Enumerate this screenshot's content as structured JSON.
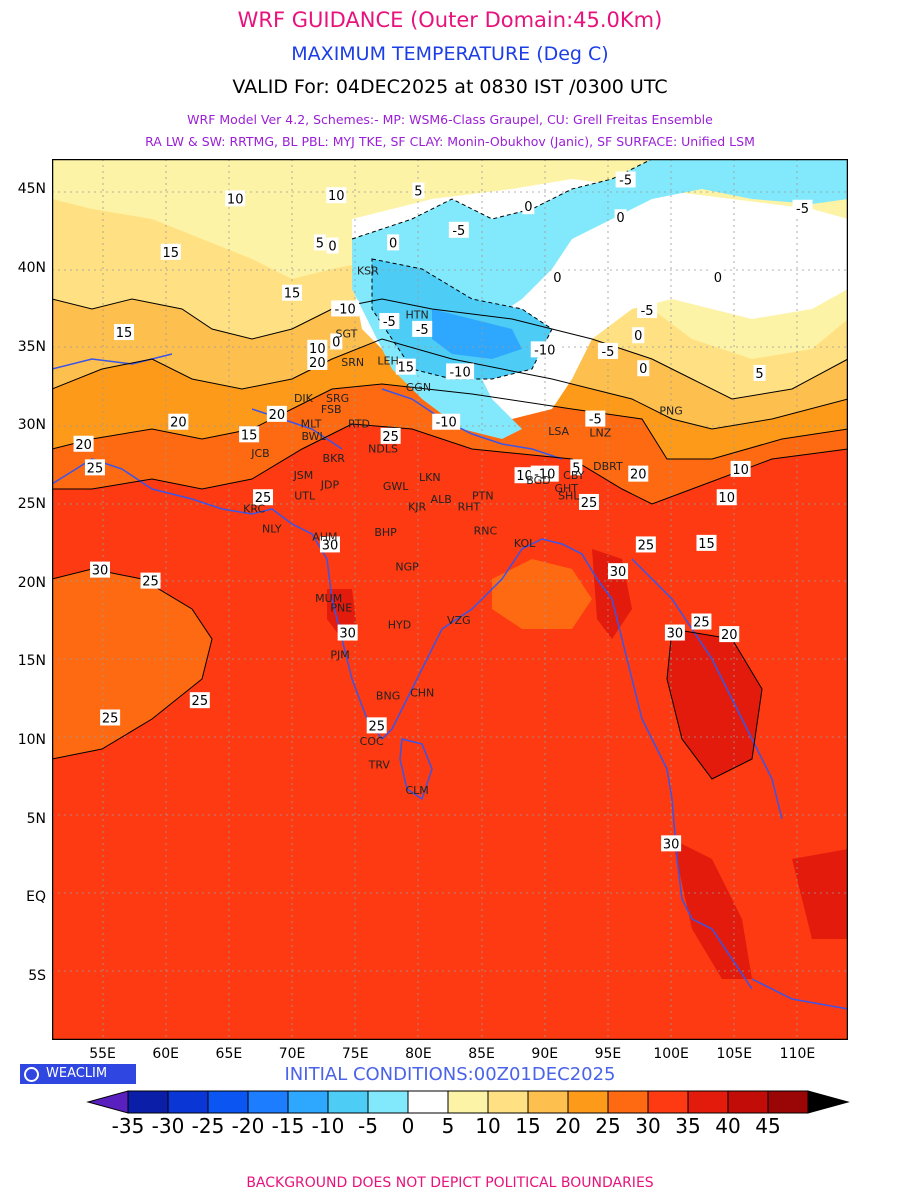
{
  "header": {
    "title": "WRF GUIDANCE (Outer Domain:45.0Km)",
    "subtitle": "MAXIMUM TEMPERATURE (Deg C)",
    "valid": "VALID For: 04DEC2025 at 0830 IST /0300 UTC",
    "model_line1": "WRF Model Ver 4.2, Schemes:- MP: WSM6-Class Graupel, CU: Grell Freitas Ensemble",
    "model_line2": "RA LW & SW: RRTMG, BL PBL: MYJ TKE, SF CLAY: Monin-Obukhov (Janic), SF SURFACE: Unified LSM"
  },
  "map": {
    "lat_labels": [
      "45N",
      "40N",
      "35N",
      "30N",
      "25N",
      "20N",
      "15N",
      "10N",
      "5N",
      "EQ",
      "5S"
    ],
    "lon_labels": [
      "55E",
      "60E",
      "65E",
      "70E",
      "75E",
      "80E",
      "85E",
      "90E",
      "95E",
      "100E",
      "105E",
      "110E"
    ],
    "lat_values": [
      45,
      40,
      35,
      30,
      25,
      20,
      15,
      10,
      5,
      0,
      -5
    ],
    "lon_values": [
      55,
      60,
      65,
      70,
      75,
      80,
      85,
      90,
      95,
      100,
      105,
      110
    ],
    "extent": {
      "lon_min": 51,
      "lon_max": 114,
      "lat_min": -9,
      "lat_max": 47
    },
    "cities": [
      {
        "code": "KSR",
        "lon": 76.0,
        "lat": 39.9
      },
      {
        "code": "HTN",
        "lon": 79.9,
        "lat": 37.1
      },
      {
        "code": "SGT",
        "lon": 74.3,
        "lat": 35.9
      },
      {
        "code": "SRN",
        "lon": 74.8,
        "lat": 34.1
      },
      {
        "code": "LEH",
        "lon": 77.6,
        "lat": 34.2
      },
      {
        "code": "GGN",
        "lon": 80.0,
        "lat": 32.5
      },
      {
        "code": "DIK",
        "lon": 70.9,
        "lat": 31.8
      },
      {
        "code": "SRG",
        "lon": 73.6,
        "lat": 31.8
      },
      {
        "code": "FSB",
        "lon": 73.1,
        "lat": 31.1
      },
      {
        "code": "MLT",
        "lon": 71.5,
        "lat": 30.2
      },
      {
        "code": "RTD",
        "lon": 75.3,
        "lat": 30.2
      },
      {
        "code": "BWL",
        "lon": 71.7,
        "lat": 29.4
      },
      {
        "code": "JCB",
        "lon": 67.5,
        "lat": 28.3
      },
      {
        "code": "BKR",
        "lon": 73.3,
        "lat": 28.0
      },
      {
        "code": "NDLS",
        "lon": 77.2,
        "lat": 28.6
      },
      {
        "code": "JSM",
        "lon": 70.9,
        "lat": 26.9
      },
      {
        "code": "LKN",
        "lon": 80.9,
        "lat": 26.8
      },
      {
        "code": "JDP",
        "lon": 73.0,
        "lat": 26.3
      },
      {
        "code": "GWL",
        "lon": 78.2,
        "lat": 26.2
      },
      {
        "code": "UTL",
        "lon": 71.0,
        "lat": 25.6
      },
      {
        "code": "PTN",
        "lon": 85.1,
        "lat": 25.6
      },
      {
        "code": "ALB",
        "lon": 81.8,
        "lat": 25.4
      },
      {
        "code": "KJR",
        "lon": 79.9,
        "lat": 24.9
      },
      {
        "code": "RHT",
        "lon": 84.0,
        "lat": 24.9
      },
      {
        "code": "KRC",
        "lon": 67.0,
        "lat": 24.8
      },
      {
        "code": "NLY",
        "lon": 68.4,
        "lat": 23.5
      },
      {
        "code": "AHM",
        "lon": 72.6,
        "lat": 23.0
      },
      {
        "code": "BHP",
        "lon": 77.4,
        "lat": 23.3
      },
      {
        "code": "RNC",
        "lon": 85.3,
        "lat": 23.4
      },
      {
        "code": "KOL",
        "lon": 88.4,
        "lat": 22.6
      },
      {
        "code": "NGP",
        "lon": 79.1,
        "lat": 21.1
      },
      {
        "code": "MUM",
        "lon": 72.9,
        "lat": 19.1
      },
      {
        "code": "PNE",
        "lon": 73.9,
        "lat": 18.5
      },
      {
        "code": "HYD",
        "lon": 78.5,
        "lat": 17.4
      },
      {
        "code": "VZG",
        "lon": 83.2,
        "lat": 17.7
      },
      {
        "code": "PJM",
        "lon": 73.8,
        "lat": 15.5
      },
      {
        "code": "CHN",
        "lon": 80.3,
        "lat": 13.1
      },
      {
        "code": "BNG",
        "lon": 77.6,
        "lat": 12.9
      },
      {
        "code": "COC",
        "lon": 76.3,
        "lat": 10.0
      },
      {
        "code": "TRV",
        "lon": 76.9,
        "lat": 8.5
      },
      {
        "code": "CLM",
        "lon": 79.9,
        "lat": 6.9
      },
      {
        "code": "LSA",
        "lon": 91.1,
        "lat": 29.7
      },
      {
        "code": "LNZ",
        "lon": 94.4,
        "lat": 29.6
      },
      {
        "code": "PNG",
        "lon": 100.0,
        "lat": 31.0
      },
      {
        "code": "GHT",
        "lon": 91.7,
        "lat": 26.1
      },
      {
        "code": "SHL",
        "lon": 91.9,
        "lat": 25.6
      },
      {
        "code": "DBRT",
        "lon": 95.0,
        "lat": 27.5
      },
      {
        "code": "CBY",
        "lon": 92.3,
        "lat": 26.9
      },
      {
        "code": "BGD",
        "lon": 89.5,
        "lat": 26.6
      }
    ],
    "contour_labels": [
      {
        "t": "10",
        "lon": 65.5,
        "lat": 44.5
      },
      {
        "t": "10",
        "lon": 73.5,
        "lat": 44.7
      },
      {
        "t": "5",
        "lon": 80.0,
        "lat": 45.0
      },
      {
        "t": "-5",
        "lon": 83.2,
        "lat": 42.5
      },
      {
        "t": "0",
        "lon": 78.0,
        "lat": 41.7
      },
      {
        "t": "-5",
        "lon": 96.4,
        "lat": 45.7
      },
      {
        "t": "0",
        "lon": 88.7,
        "lat": 44.0
      },
      {
        "t": "0",
        "lon": 96.0,
        "lat": 43.3
      },
      {
        "t": "-5",
        "lon": 110.4,
        "lat": 43.9
      },
      {
        "t": "15",
        "lon": 60.4,
        "lat": 41.1
      },
      {
        "t": "15",
        "lon": 70.0,
        "lat": 38.5
      },
      {
        "t": "5",
        "lon": 72.2,
        "lat": 41.7
      },
      {
        "t": "0",
        "lon": 73.2,
        "lat": 41.5
      },
      {
        "t": "0",
        "lon": 91.0,
        "lat": 39.5
      },
      {
        "t": "0",
        "lon": 103.7,
        "lat": 39.5
      },
      {
        "t": "-10",
        "lon": 74.2,
        "lat": 37.5
      },
      {
        "t": "-5",
        "lon": 77.7,
        "lat": 36.7
      },
      {
        "t": "-5",
        "lon": 80.3,
        "lat": 36.2
      },
      {
        "t": "-5",
        "lon": 98.1,
        "lat": 37.4
      },
      {
        "t": "0",
        "lon": 97.4,
        "lat": 35.8
      },
      {
        "t": "15",
        "lon": 56.7,
        "lat": 36.0
      },
      {
        "t": "10",
        "lon": 72.0,
        "lat": 35.0
      },
      {
        "t": "0",
        "lon": 73.5,
        "lat": 35.4
      },
      {
        "t": "20",
        "lon": 72.0,
        "lat": 34.1
      },
      {
        "t": "15",
        "lon": 79.0,
        "lat": 33.8
      },
      {
        "t": "-10",
        "lon": 83.3,
        "lat": 33.5
      },
      {
        "t": "-10",
        "lon": 90.0,
        "lat": 34.9
      },
      {
        "t": "-5",
        "lon": 95.0,
        "lat": 34.8
      },
      {
        "t": "0",
        "lon": 97.8,
        "lat": 33.7
      },
      {
        "t": "5",
        "lon": 107.0,
        "lat": 33.4
      },
      {
        "t": "20",
        "lon": 68.8,
        "lat": 30.8
      },
      {
        "t": "20",
        "lon": 61.0,
        "lat": 30.3
      },
      {
        "t": "15",
        "lon": 66.6,
        "lat": 29.5
      },
      {
        "t": "-10",
        "lon": 82.2,
        "lat": 30.3
      },
      {
        "t": "-5",
        "lon": 94.0,
        "lat": 30.5
      },
      {
        "t": "25",
        "lon": 77.8,
        "lat": 29.4
      },
      {
        "t": "20",
        "lon": 53.5,
        "lat": 28.9
      },
      {
        "t": "25",
        "lon": 54.4,
        "lat": 27.4
      },
      {
        "t": "10",
        "lon": 88.4,
        "lat": 26.9
      },
      {
        "t": "-10",
        "lon": 90.0,
        "lat": 27.0
      },
      {
        "t": "5",
        "lon": 92.5,
        "lat": 27.4
      },
      {
        "t": "20",
        "lon": 97.4,
        "lat": 27.0
      },
      {
        "t": "10",
        "lon": 105.5,
        "lat": 27.3
      },
      {
        "t": "10",
        "lon": 104.4,
        "lat": 25.5
      },
      {
        "t": "25",
        "lon": 67.7,
        "lat": 25.5
      },
      {
        "t": "25",
        "lon": 93.5,
        "lat": 25.2
      },
      {
        "t": "30",
        "lon": 73.0,
        "lat": 22.5
      },
      {
        "t": "25",
        "lon": 98.0,
        "lat": 22.5
      },
      {
        "t": "15",
        "lon": 102.8,
        "lat": 22.6
      },
      {
        "t": "30",
        "lon": 54.8,
        "lat": 20.9
      },
      {
        "t": "25",
        "lon": 58.8,
        "lat": 20.2
      },
      {
        "t": "30",
        "lon": 95.8,
        "lat": 20.8
      },
      {
        "t": "25",
        "lon": 102.4,
        "lat": 17.6
      },
      {
        "t": "20",
        "lon": 104.6,
        "lat": 16.8
      },
      {
        "t": "30",
        "lon": 74.4,
        "lat": 16.9
      },
      {
        "t": "30",
        "lon": 100.3,
        "lat": 16.9
      },
      {
        "t": "25",
        "lon": 62.7,
        "lat": 12.6
      },
      {
        "t": "25",
        "lon": 55.6,
        "lat": 11.5
      },
      {
        "t": "25",
        "lon": 76.7,
        "lat": 11.0
      },
      {
        "t": "30",
        "lon": 100.0,
        "lat": 3.5
      }
    ]
  },
  "logo": {
    "text": "WEACLIM"
  },
  "init_conditions": "INITIAL CONDITIONS:00Z01DEC2025",
  "colorbar": {
    "labels": [
      "-35",
      "-30",
      "-25",
      "-20",
      "-15",
      "-10",
      "-5",
      "0",
      "5",
      "10",
      "15",
      "20",
      "25",
      "30",
      "35",
      "40",
      "45"
    ],
    "low_color": "#5a1fbf",
    "high_color": "#000000",
    "colors": [
      "#0b1ea8",
      "#0a36d6",
      "#0b56f2",
      "#1c7dff",
      "#2ea8ff",
      "#4dcdf6",
      "#82e8fb",
      "#ffffff",
      "#fdf3a6",
      "#ffe183",
      "#fdbf4d",
      "#fe9a1a",
      "#fe6a12",
      "#fd3a12",
      "#e21b0d",
      "#c10c07",
      "#9a0505"
    ]
  },
  "footer": "BACKGROUND DOES NOT DEPICT POLITICAL BOUNDARIES"
}
